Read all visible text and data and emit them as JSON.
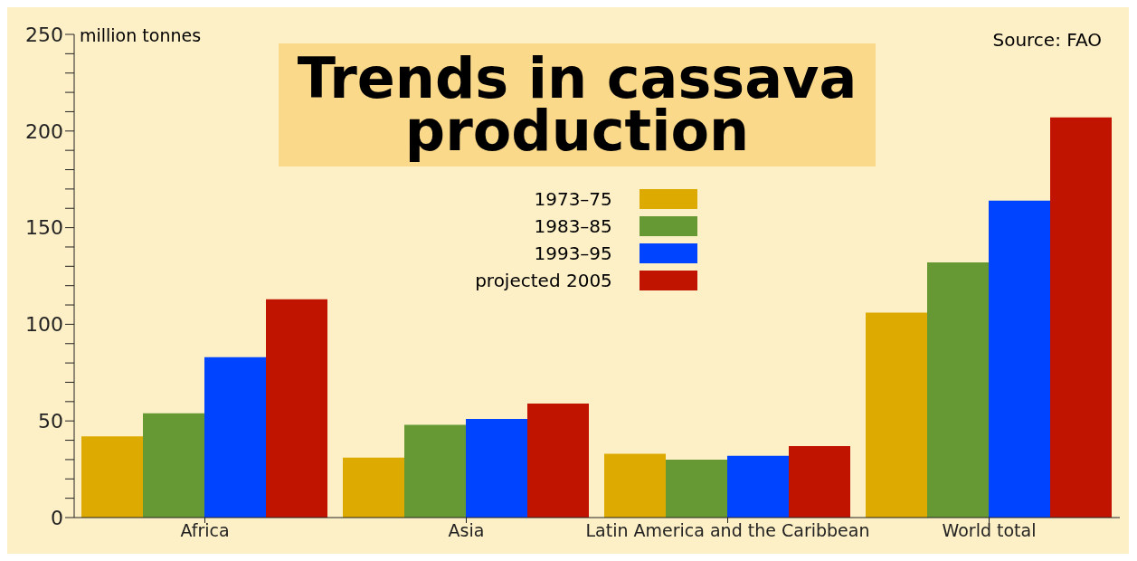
{
  "chart_data": {
    "type": "bar",
    "title": "Trends in cassava production",
    "ylabel": "million tonnes",
    "annotations": [
      "Source: FAO"
    ],
    "categories": [
      "Africa",
      "Asia",
      "Latin America and the Caribbean",
      "World total"
    ],
    "series": [
      {
        "name": "1973–75",
        "color": "#dcaa00",
        "values": [
          42,
          31,
          33,
          106
        ]
      },
      {
        "name": "1983–85",
        "color": "#669933",
        "values": [
          54,
          48,
          30,
          132
        ]
      },
      {
        "name": "1993–95",
        "color": "#0044ff",
        "values": [
          83,
          51,
          32,
          164
        ]
      },
      {
        "name": "projected 2005",
        "color": "#c01400",
        "values": [
          113,
          59,
          37,
          207
        ]
      }
    ],
    "ylim": [
      0,
      250
    ],
    "yticks": [
      0,
      {
        "value": 10,
        "label": null
      },
      {
        "value": 20,
        "label": null
      },
      {
        "value": 30,
        "label": null
      },
      {
        "value": 40,
        "label": null
      },
      50,
      {
        "value": 60,
        "label": null
      },
      {
        "value": 70,
        "label": null
      },
      {
        "value": 80,
        "label": null
      },
      {
        "value": 90,
        "label": null
      },
      100,
      {
        "value": 110,
        "label": null
      },
      {
        "value": 120,
        "label": null
      },
      {
        "value": 130,
        "label": null
      },
      {
        "value": 140,
        "label": null
      },
      150,
      {
        "value": 160,
        "label": null
      },
      {
        "value": 170,
        "label": null
      },
      {
        "value": 180,
        "label": null
      },
      {
        "value": 190,
        "label": null
      },
      200,
      {
        "value": 210,
        "label": null
      },
      {
        "value": 220,
        "label": null
      },
      {
        "value": 230,
        "label": null
      },
      {
        "value": 240,
        "label": null
      },
      250
    ],
    "grid": false,
    "legend": "top"
  }
}
